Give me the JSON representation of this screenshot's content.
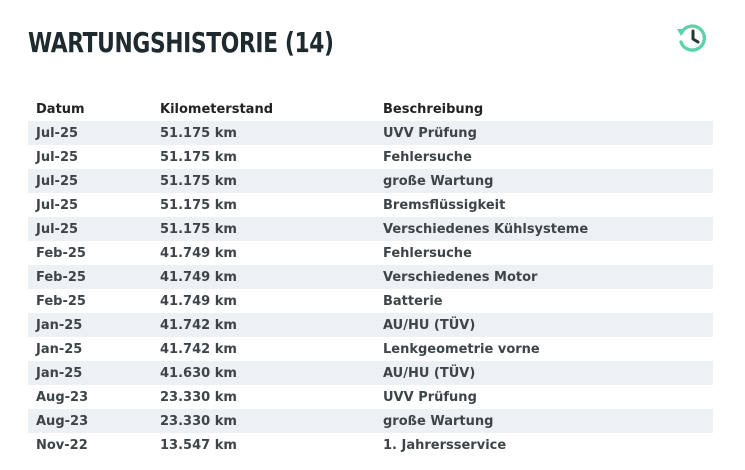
{
  "header": {
    "title": "WARTUNGSHISTORIE (14)",
    "icon": "history-icon",
    "accent_color": "#5dd2ad"
  },
  "table": {
    "columns": [
      "Datum",
      "Kilometerstand",
      "Beschreibung"
    ],
    "rows": [
      [
        "Jul-25",
        "51.175 km",
        "UVV Prüfung"
      ],
      [
        "Jul-25",
        "51.175 km",
        "Fehlersuche"
      ],
      [
        "Jul-25",
        "51.175 km",
        "große Wartung"
      ],
      [
        "Jul-25",
        "51.175 km",
        "Bremsflüssigkeit"
      ],
      [
        "Jul-25",
        "51.175 km",
        "Verschiedenes Kühlsysteme"
      ],
      [
        "Feb-25",
        "41.749 km",
        "Fehlersuche"
      ],
      [
        "Feb-25",
        "41.749 km",
        "Verschiedenes Motor"
      ],
      [
        "Feb-25",
        "41.749 km",
        "Batterie"
      ],
      [
        "Jan-25",
        "41.742 km",
        "AU/HU (TÜV)"
      ],
      [
        "Jan-25",
        "41.742 km",
        "Lenkgeometrie vorne"
      ],
      [
        "Jan-25",
        "41.630 km",
        "AU/HU (TÜV)"
      ],
      [
        "Aug-23",
        "23.330 km",
        "UVV Prüfung"
      ],
      [
        "Aug-23",
        "23.330 km",
        "große Wartung"
      ],
      [
        "Nov-22",
        "13.547 km",
        "1. Jahrersservice"
      ]
    ]
  }
}
